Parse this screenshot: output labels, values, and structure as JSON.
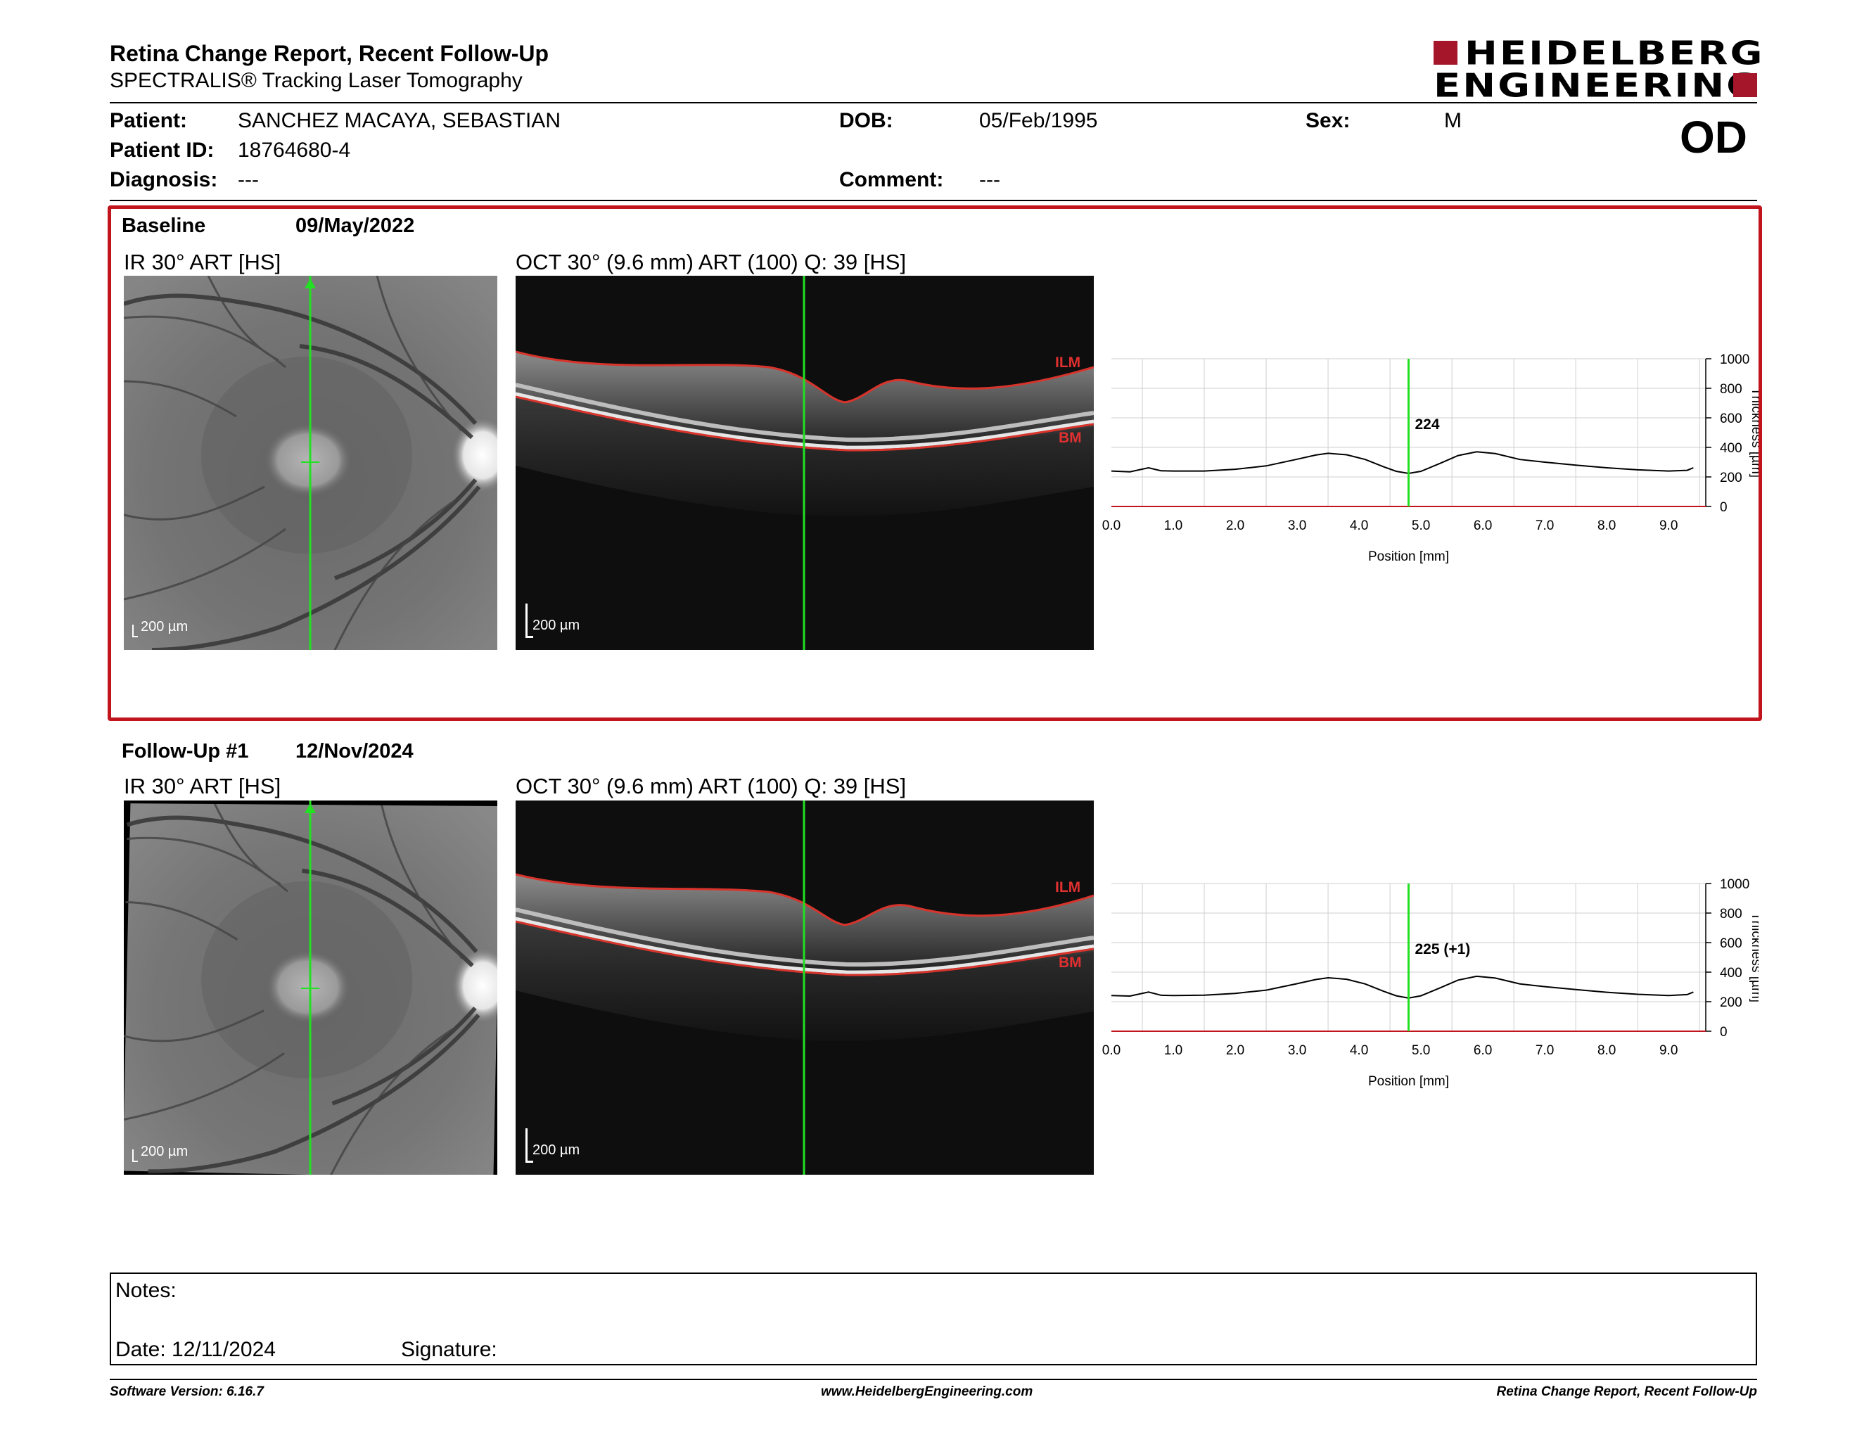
{
  "header": {
    "title": "Retina Change Report, Recent Follow-Up",
    "subtitle": "SPECTRALIS® Tracking Laser Tomography",
    "logo_line1": "HEIDELBERG",
    "logo_line2": "ENGINEERING",
    "eye": "OD"
  },
  "patient": {
    "patient_label": "Patient:",
    "patient_value": "SANCHEZ MACAYA, SEBASTIAN",
    "id_label": "Patient ID:",
    "id_value": "18764680-4",
    "diagnosis_label": "Diagnosis:",
    "diagnosis_value": "---",
    "dob_label": "DOB:",
    "dob_value": "05/Feb/1995",
    "comment_label": "Comment:",
    "comment_value": "---",
    "sex_label": "Sex:",
    "sex_value": "M"
  },
  "baseline": {
    "label": "Baseline",
    "date": "09/May/2022",
    "ir_title": "IR 30° ART [HS]",
    "oct_title": "OCT 30° (9.6 mm) ART (100) Q: 39 [HS]",
    "scale_ir": "200 µm",
    "scale_oct": "200 µm",
    "ilm": "ILM",
    "bm": "BM"
  },
  "followup": {
    "label": "Follow-Up #1",
    "date": "12/Nov/2024",
    "ir_title": "IR 30° ART [HS]",
    "oct_title": "OCT 30° (9.6 mm) ART (100) Q: 39 [HS]",
    "scale_ir": "200 µm",
    "scale_oct": "200 µm",
    "ilm": "ILM",
    "bm": "BM"
  },
  "chart_data": [
    {
      "type": "line",
      "xlabel": "Position [mm]",
      "ylabel": "Thickness [µm]",
      "xlim": [
        0,
        9.6
      ],
      "ylim": [
        0,
        1000
      ],
      "x_ticks": [
        "0.0",
        "1.0",
        "2.0",
        "3.0",
        "4.0",
        "5.0",
        "6.0",
        "7.0",
        "8.0",
        "9.0"
      ],
      "y_ticks": [
        "0",
        "200",
        "400",
        "600",
        "800",
        "1000"
      ],
      "grid": true,
      "marker_x": 4.8,
      "marker_label": "224",
      "x": [
        0.0,
        0.3,
        0.6,
        0.8,
        1.0,
        1.5,
        2.0,
        2.5,
        3.0,
        3.3,
        3.5,
        3.8,
        4.1,
        4.4,
        4.6,
        4.8,
        5.0,
        5.3,
        5.6,
        5.9,
        6.2,
        6.6,
        7.0,
        7.5,
        8.0,
        8.5,
        9.0,
        9.3,
        9.4
      ],
      "series": [
        {
          "values": [
            240,
            235,
            262,
            242,
            240,
            240,
            252,
            275,
            320,
            348,
            360,
            350,
            318,
            268,
            238,
            224,
            238,
            290,
            345,
            370,
            358,
            318,
            300,
            280,
            262,
            248,
            240,
            245,
            262
          ]
        }
      ]
    },
    {
      "type": "line",
      "xlabel": "Position [mm]",
      "ylabel": "Thickness [µm]",
      "xlim": [
        0,
        9.6
      ],
      "ylim": [
        0,
        1000
      ],
      "x_ticks": [
        "0.0",
        "1.0",
        "2.0",
        "3.0",
        "4.0",
        "5.0",
        "6.0",
        "7.0",
        "8.0",
        "9.0"
      ],
      "y_ticks": [
        "0",
        "200",
        "400",
        "600",
        "800",
        "1000"
      ],
      "grid": true,
      "marker_x": 4.8,
      "marker_label": "225 (+1)",
      "x": [
        0.0,
        0.3,
        0.6,
        0.8,
        1.0,
        1.5,
        2.0,
        2.5,
        3.0,
        3.3,
        3.5,
        3.8,
        4.1,
        4.4,
        4.6,
        4.8,
        5.0,
        5.3,
        5.6,
        5.9,
        6.2,
        6.6,
        7.0,
        7.5,
        8.0,
        8.5,
        9.0,
        9.3,
        9.4
      ],
      "series": [
        {
          "values": [
            242,
            238,
            265,
            244,
            242,
            244,
            256,
            278,
            322,
            350,
            362,
            352,
            320,
            270,
            240,
            225,
            240,
            292,
            346,
            372,
            360,
            320,
            302,
            282,
            264,
            250,
            242,
            248,
            265
          ]
        }
      ]
    }
  ],
  "notes": {
    "notes_label": "Notes:",
    "date_label": "Date: 12/11/2024",
    "signature_label": "Signature:"
  },
  "footer": {
    "version": "Software Version: 6.16.7",
    "website": "www.HeidelbergEngineering.com",
    "report_name": "Retina Change Report, Recent Follow-Up"
  }
}
